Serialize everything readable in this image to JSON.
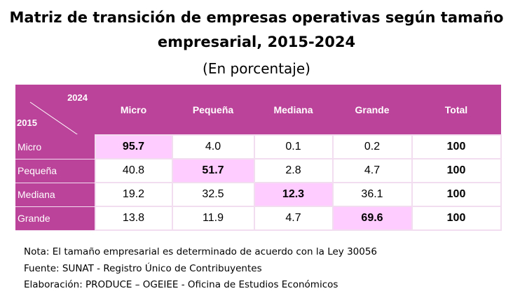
{
  "title_line1": "Matriz de transición de empresas operativas según tamaño",
  "title_line2": "empresarial, 2015-2024",
  "subtitle": "(En porcentaje)",
  "table": {
    "col_year": "2024",
    "row_year": "2015",
    "columns": [
      "Micro",
      "Pequeña",
      "Mediana",
      "Grande",
      "Total"
    ],
    "rows": [
      {
        "label": "Micro",
        "values": [
          "95.7",
          "4.0",
          "0.1",
          "0.2",
          "100"
        ]
      },
      {
        "label": "Pequeña",
        "values": [
          "40.8",
          "51.7",
          "2.8",
          "4.7",
          "100"
        ]
      },
      {
        "label": "Mediana",
        "values": [
          "19.2",
          "32.5",
          "12.3",
          "36.1",
          "100"
        ]
      },
      {
        "label": "Grande",
        "values": [
          "13.8",
          "11.9",
          "4.7",
          "69.6",
          "100"
        ]
      }
    ]
  },
  "notes": [
    "Nota: El tamaño empresarial es determinado de acuerdo con la Ley 30056",
    "Fuente: SUNAT - Registro Único de Contribuyentes",
    "Elaboración: PRODUCE – OGEIEE - Oficina de Estudios Económicos"
  ],
  "colors": {
    "header": "#bb4399",
    "diagonal": "#ffccff",
    "border": "#f2dcef"
  }
}
